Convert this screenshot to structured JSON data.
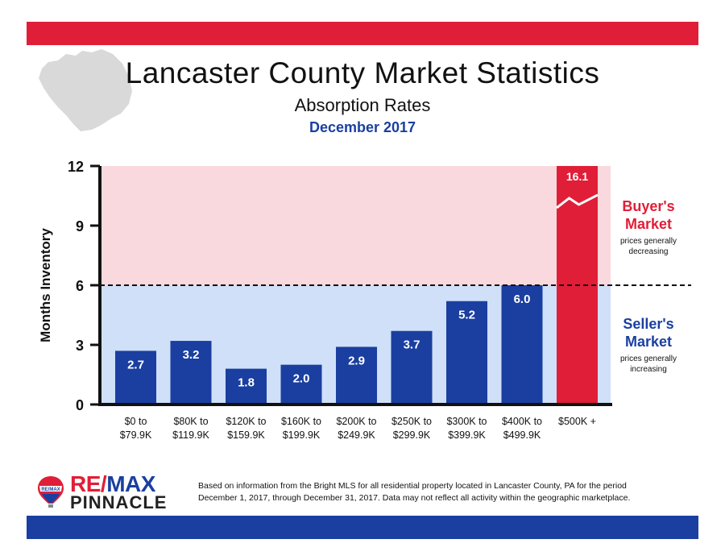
{
  "header": {
    "title": "Lancaster County Market Statistics",
    "subtitle": "Absorption Rates",
    "date": "December 2017"
  },
  "colors": {
    "brand_red": "#e01e37",
    "brand_blue": "#1a3fa0",
    "buyers_zone": "#f9d9dd",
    "sellers_zone": "#cfe0f8"
  },
  "chart_data": {
    "type": "bar",
    "title": "",
    "xlabel": "",
    "ylabel": "Months Inventory",
    "ylim": [
      0,
      12
    ],
    "yticks": [
      0,
      3,
      6,
      9,
      12
    ],
    "categories": [
      [
        "$0 to",
        "$79.9K"
      ],
      [
        "$80K to",
        "$119.9K"
      ],
      [
        "$120K to",
        "$159.9K"
      ],
      [
        "$160K to",
        "$199.9K"
      ],
      [
        "$200K to",
        "$249.9K"
      ],
      [
        "$250K to",
        "$299.9K"
      ],
      [
        "$300K to",
        "$399.9K"
      ],
      [
        "$400K to",
        "$499.9K"
      ],
      [
        "$500K +"
      ]
    ],
    "values": [
      2.7,
      3.2,
      1.8,
      2.0,
      2.9,
      3.7,
      5.2,
      6.0,
      16.1
    ],
    "value_labels": [
      "2.7",
      "3.2",
      "1.8",
      "2.0",
      "2.9",
      "3.7",
      "5.2",
      "6.0",
      "16.1"
    ],
    "bar_colors": [
      "#1a3fa0",
      "#1a3fa0",
      "#1a3fa0",
      "#1a3fa0",
      "#1a3fa0",
      "#1a3fa0",
      "#1a3fa0",
      "#1a3fa0",
      "#e01e37"
    ],
    "broken_bar_index": 8,
    "threshold": 6,
    "grid": false,
    "zones": {
      "buyers": {
        "heading": [
          "Buyer's",
          "Market"
        ],
        "note": [
          "prices generally",
          "decreasing"
        ],
        "color": "#e01e37"
      },
      "sellers": {
        "heading": [
          "Seller's",
          "Market"
        ],
        "note": [
          "prices generally",
          "increasing"
        ],
        "color": "#1a3fa0"
      }
    }
  },
  "logo": {
    "mark_text": "RE/MAX",
    "name_part1": "RE/",
    "name_part2": "MAX",
    "tagline": "PINNACLE"
  },
  "footnote": {
    "line1": "Based on information from the Bright MLS for all residential property located in Lancaster County, PA for the period",
    "line2": "December 1, 2017, through December 31, 2017.  Data may not reflect all activity within the geographic marketplace."
  }
}
